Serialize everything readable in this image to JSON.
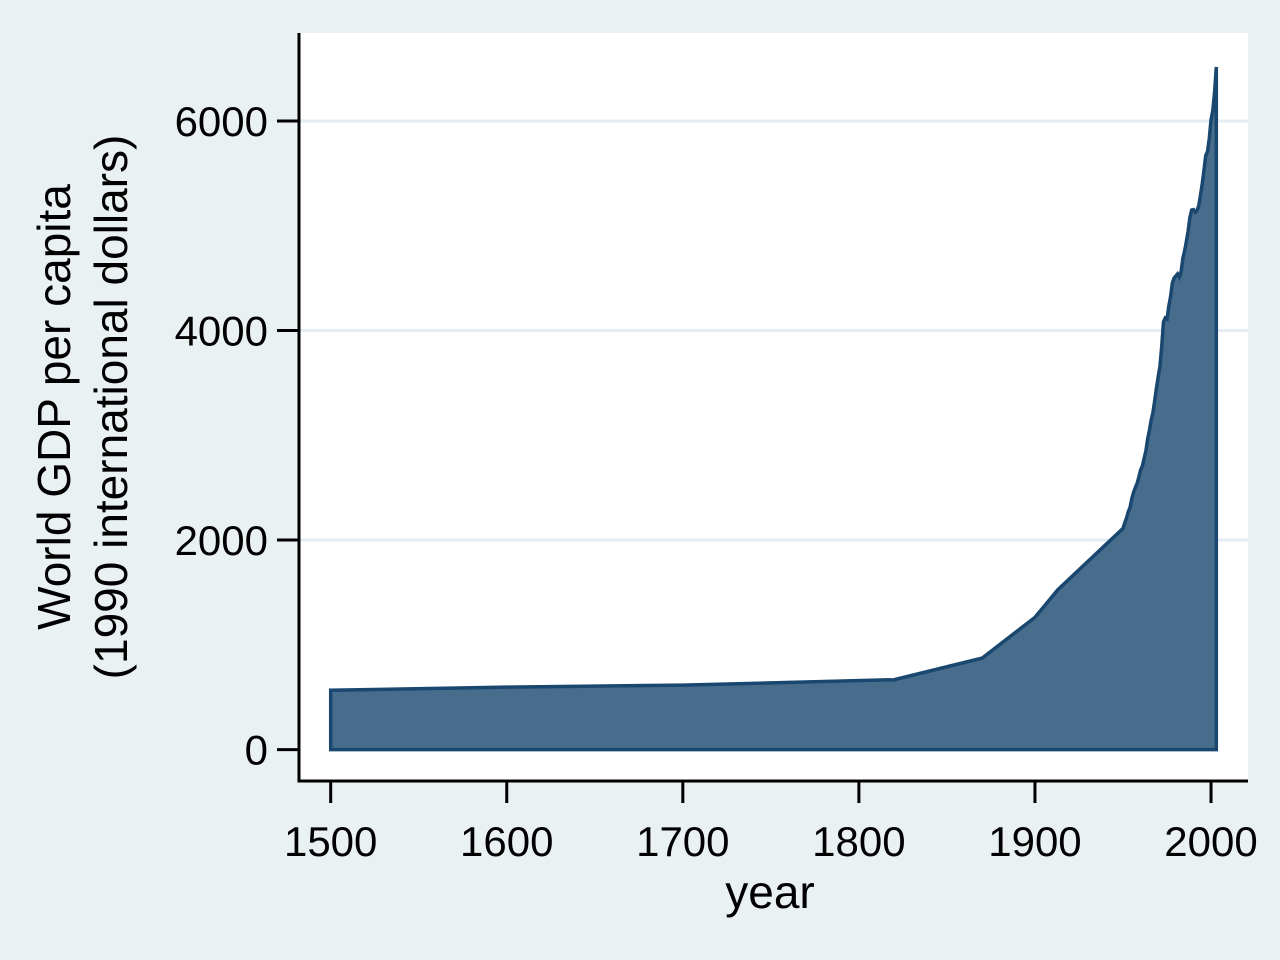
{
  "chart_data": {
    "type": "area",
    "title": "",
    "xlabel": "year",
    "ylabel_line1": "World GDP per capita",
    "ylabel_line2": "(1990 international dollars)",
    "x_ticks": [
      1500,
      1600,
      1700,
      1800,
      1900,
      2000
    ],
    "y_ticks": [
      0,
      2000,
      4000,
      6000
    ],
    "xlim": [
      1482,
      2021
    ],
    "ylim": [
      -300,
      6840
    ],
    "grid": "horizontal-only",
    "legend": "none",
    "series": [
      {
        "name": "World GDP per capita (1990 international dollars)",
        "points": [
          [
            1500,
            566
          ],
          [
            1600,
            596
          ],
          [
            1700,
            615
          ],
          [
            1820,
            667
          ],
          [
            1870,
            873
          ],
          [
            1900,
            1262
          ],
          [
            1913,
            1526
          ],
          [
            1950,
            2111
          ],
          [
            1951,
            2165
          ],
          [
            1952,
            2210
          ],
          [
            1953,
            2270
          ],
          [
            1954,
            2310
          ],
          [
            1955,
            2395
          ],
          [
            1956,
            2455
          ],
          [
            1957,
            2500
          ],
          [
            1958,
            2540
          ],
          [
            1959,
            2600
          ],
          [
            1960,
            2670
          ],
          [
            1961,
            2705
          ],
          [
            1962,
            2780
          ],
          [
            1963,
            2850
          ],
          [
            1964,
            2965
          ],
          [
            1965,
            3045
          ],
          [
            1966,
            3145
          ],
          [
            1967,
            3215
          ],
          [
            1968,
            3330
          ],
          [
            1969,
            3450
          ],
          [
            1970,
            3560
          ],
          [
            1971,
            3660
          ],
          [
            1972,
            3850
          ],
          [
            1973,
            4083
          ],
          [
            1974,
            4120
          ],
          [
            1975,
            4110
          ],
          [
            1976,
            4230
          ],
          [
            1977,
            4320
          ],
          [
            1978,
            4450
          ],
          [
            1979,
            4500
          ],
          [
            1980,
            4520
          ],
          [
            1981,
            4540
          ],
          [
            1982,
            4510
          ],
          [
            1983,
            4560
          ],
          [
            1984,
            4690
          ],
          [
            1985,
            4760
          ],
          [
            1986,
            4850
          ],
          [
            1987,
            4950
          ],
          [
            1988,
            5080
          ],
          [
            1989,
            5150
          ],
          [
            1990,
            5154
          ],
          [
            1991,
            5130
          ],
          [
            1992,
            5145
          ],
          [
            1993,
            5190
          ],
          [
            1994,
            5290
          ],
          [
            1995,
            5400
          ],
          [
            1996,
            5530
          ],
          [
            1997,
            5670
          ],
          [
            1998,
            5709
          ],
          [
            1999,
            5830
          ],
          [
            2000,
            6012
          ],
          [
            2001,
            6100
          ],
          [
            2002,
            6270
          ],
          [
            2003,
            6516
          ]
        ]
      }
    ],
    "colors": {
      "background": "#EAF1F3",
      "plot_background": "#FFFFFF",
      "area_fill": "#486C8C",
      "area_outline": "#1A476F",
      "gridline": "#E3EDF3",
      "axis": "#000000",
      "text": "#000000"
    }
  }
}
